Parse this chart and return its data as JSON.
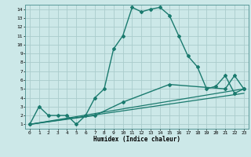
{
  "xlabel": "Humidex (Indice chaleur)",
  "bg_color": "#cce8e8",
  "line_color": "#1a7a6e",
  "grid_color": "#aacccc",
  "xlim": [
    -0.5,
    23.5
  ],
  "ylim": [
    0.5,
    14.5
  ],
  "xticks": [
    0,
    1,
    2,
    3,
    4,
    5,
    6,
    7,
    8,
    9,
    10,
    11,
    12,
    13,
    14,
    15,
    16,
    17,
    18,
    19,
    20,
    21,
    22,
    23
  ],
  "yticks": [
    1,
    2,
    3,
    4,
    5,
    6,
    7,
    8,
    9,
    10,
    11,
    12,
    13,
    14
  ],
  "series": [
    {
      "x": [
        0,
        1,
        2,
        3,
        4,
        5,
        6,
        7,
        8,
        9,
        10,
        11,
        12,
        13,
        14,
        15,
        16,
        17,
        18,
        19,
        20,
        21,
        22,
        23
      ],
      "y": [
        1,
        3,
        2,
        2,
        2,
        1,
        2,
        4,
        5,
        9.5,
        11,
        14.2,
        13.7,
        14,
        14.2,
        13.3,
        11,
        8.7,
        7.5,
        5,
        5.3,
        6.5,
        4.5,
        5
      ],
      "marker": true
    },
    {
      "x": [
        0,
        23
      ],
      "y": [
        1,
        5
      ],
      "marker": false
    },
    {
      "x": [
        0,
        23
      ],
      "y": [
        1,
        4.5
      ],
      "marker": false
    },
    {
      "x": [
        0,
        7,
        10,
        15,
        21,
        22,
        23
      ],
      "y": [
        1,
        2,
        3.5,
        5.5,
        5,
        6.5,
        5
      ],
      "marker": true
    }
  ]
}
